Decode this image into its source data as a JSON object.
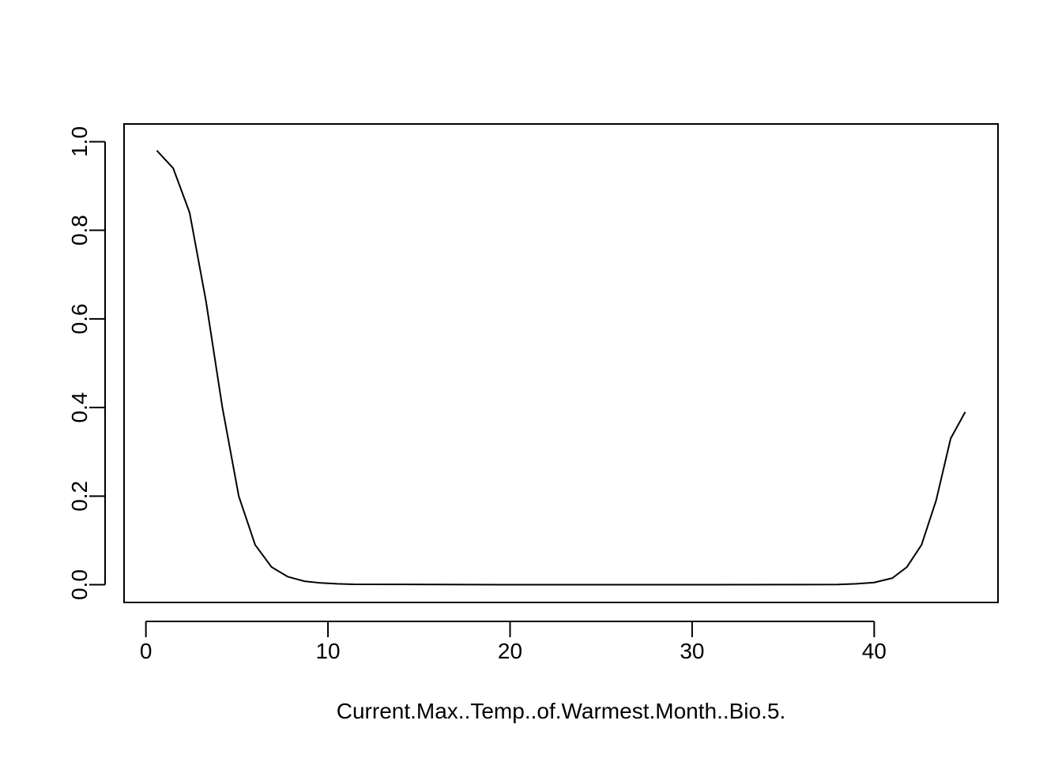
{
  "chart_data": {
    "type": "line",
    "title": "",
    "xlabel": "Current.Max..Temp..of.Warmest.Month..Bio.5.",
    "ylabel": "",
    "xlim": [
      -1.2,
      46.8
    ],
    "ylim": [
      -0.04,
      1.04
    ],
    "grid": false,
    "legend": "none",
    "x_ticks": [
      0,
      10,
      20,
      30,
      40
    ],
    "x_tick_labels": [
      "0",
      "10",
      "20",
      "30",
      "40"
    ],
    "y_ticks": [
      0.0,
      0.2,
      0.4,
      0.6,
      0.8,
      1.0
    ],
    "y_tick_labels": [
      "0.0",
      "0.2",
      "0.4",
      "0.6",
      "0.8",
      "1.0"
    ],
    "series": [
      {
        "line_color": "#000000",
        "x": [
          0.6,
          1.5,
          2.4,
          3.3,
          4.2,
          5.1,
          6.0,
          6.9,
          7.8,
          8.7,
          9.6,
          10.5,
          11.4,
          20.0,
          30.0,
          38.0,
          39.0,
          40.0,
          41.0,
          41.8,
          42.6,
          43.4,
          44.2,
          45.0
        ],
        "y": [
          0.98,
          0.94,
          0.84,
          0.64,
          0.4,
          0.2,
          0.09,
          0.04,
          0.018,
          0.008,
          0.004,
          0.002,
          0.001,
          0.0,
          0.0,
          0.0005,
          0.002,
          0.005,
          0.015,
          0.04,
          0.09,
          0.19,
          0.33,
          0.39
        ]
      }
    ]
  }
}
